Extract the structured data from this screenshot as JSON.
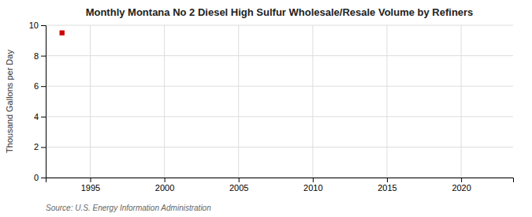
{
  "chart_data": {
    "type": "scatter",
    "title": "Monthly Montana No 2 Diesel High Sulfur Wholesale/Resale Volume by Refiners",
    "y_label": "Thousand Gallons per Day",
    "annotations": [
      "Source: U.S. Energy Information Administration"
    ],
    "x": [
      1993.1
    ],
    "values": [
      9.5
    ],
    "color": "#cc0000",
    "marker": "square",
    "xlim": [
      1992.0,
      2023.5
    ],
    "xticks": [
      1995,
      2000,
      2005,
      2010,
      2015,
      2020
    ],
    "ylim": [
      0,
      10
    ],
    "yticks": [
      0,
      2,
      4,
      6,
      8,
      10
    ],
    "grid": true
  }
}
